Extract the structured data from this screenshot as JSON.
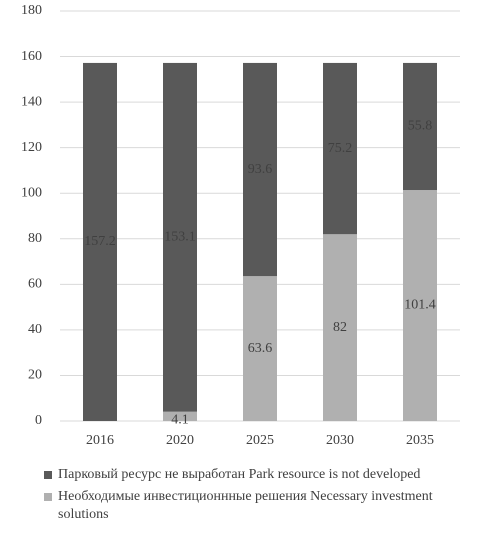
{
  "chart_data": {
    "type": "stacked-bar",
    "categories": [
      "2016",
      "2020",
      "2025",
      "2030",
      "2035"
    ],
    "series": [
      {
        "name": "Парковый ресурс не выработан Park resource is not developed",
        "color": "#595959",
        "values": [
          157.2,
          153.1,
          93.6,
          75.2,
          55.8
        ]
      },
      {
        "name": "Необходимые инвестиционнные решения Necessary investment solutions",
        "color": "#b0b0b0",
        "values": [
          null,
          4.1,
          63.6,
          82,
          101.4
        ]
      }
    ],
    "ylim": [
      0,
      180
    ],
    "yticks": [
      0,
      20,
      40,
      60,
      80,
      100,
      120,
      140,
      160,
      180
    ],
    "grid": true
  }
}
